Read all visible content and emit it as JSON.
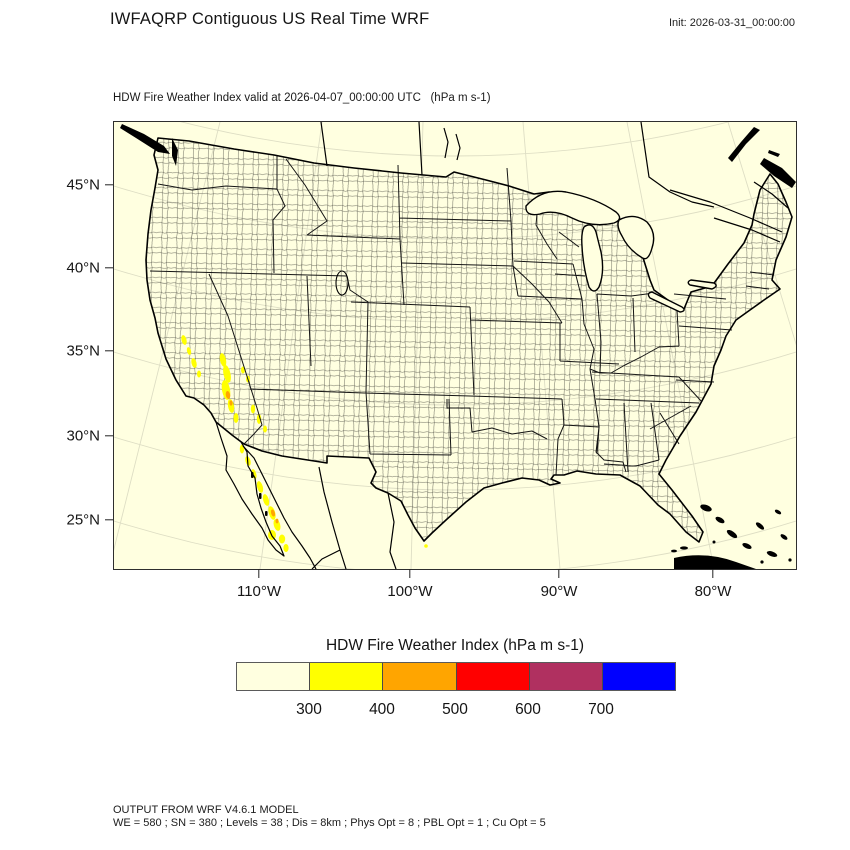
{
  "header": {
    "title": "IWFAQRP Contiguous US Real Time WRF",
    "init_label": "Init: 2026-03-31_00:00:00"
  },
  "map": {
    "subtitle": "HDW Fire Weather Index valid at 2026-04-07_00:00:00 UTC   (hPa m s-1)",
    "background_color": "#FFFFE0",
    "lat_tick_labels": [
      "45°N",
      "40°N",
      "35°N",
      "30°N",
      "25°N"
    ],
    "lon_tick_labels": [
      "110°W",
      "100°W",
      "90°W",
      "80°W"
    ]
  },
  "legend": {
    "title": "HDW Fire Weather Index (hPa m s-1)",
    "tick_labels": [
      "300",
      "400",
      "500",
      "600",
      "700"
    ],
    "colors": [
      "#FFFFE0",
      "#FFFF00",
      "#FFA500",
      "#FF0000",
      "#B03060",
      "#0000FF"
    ],
    "scale": {
      "unit": "hPa m s-1",
      "levels": [
        300,
        400,
        500,
        600,
        700
      ],
      "bands": [
        {
          "range": "< 300",
          "color": "#FFFFE0"
        },
        {
          "range": "300-400",
          "color": "#FFFF00"
        },
        {
          "range": "400-500",
          "color": "#FFA500"
        },
        {
          "range": "500-600",
          "color": "#FF0000"
        },
        {
          "range": "600-700",
          "color": "#B03060"
        },
        {
          "range": "> 700",
          "color": "#0000FF"
        }
      ]
    }
  },
  "footer": {
    "line1": "OUTPUT FROM WRF V4.6.1 MODEL",
    "line2": "WE = 580 ; SN = 380 ; Levels = 38 ; Dis = 8km ; Phys Opt = 8 ; PBL Opt = 1 ; Cu Opt = 5"
  }
}
